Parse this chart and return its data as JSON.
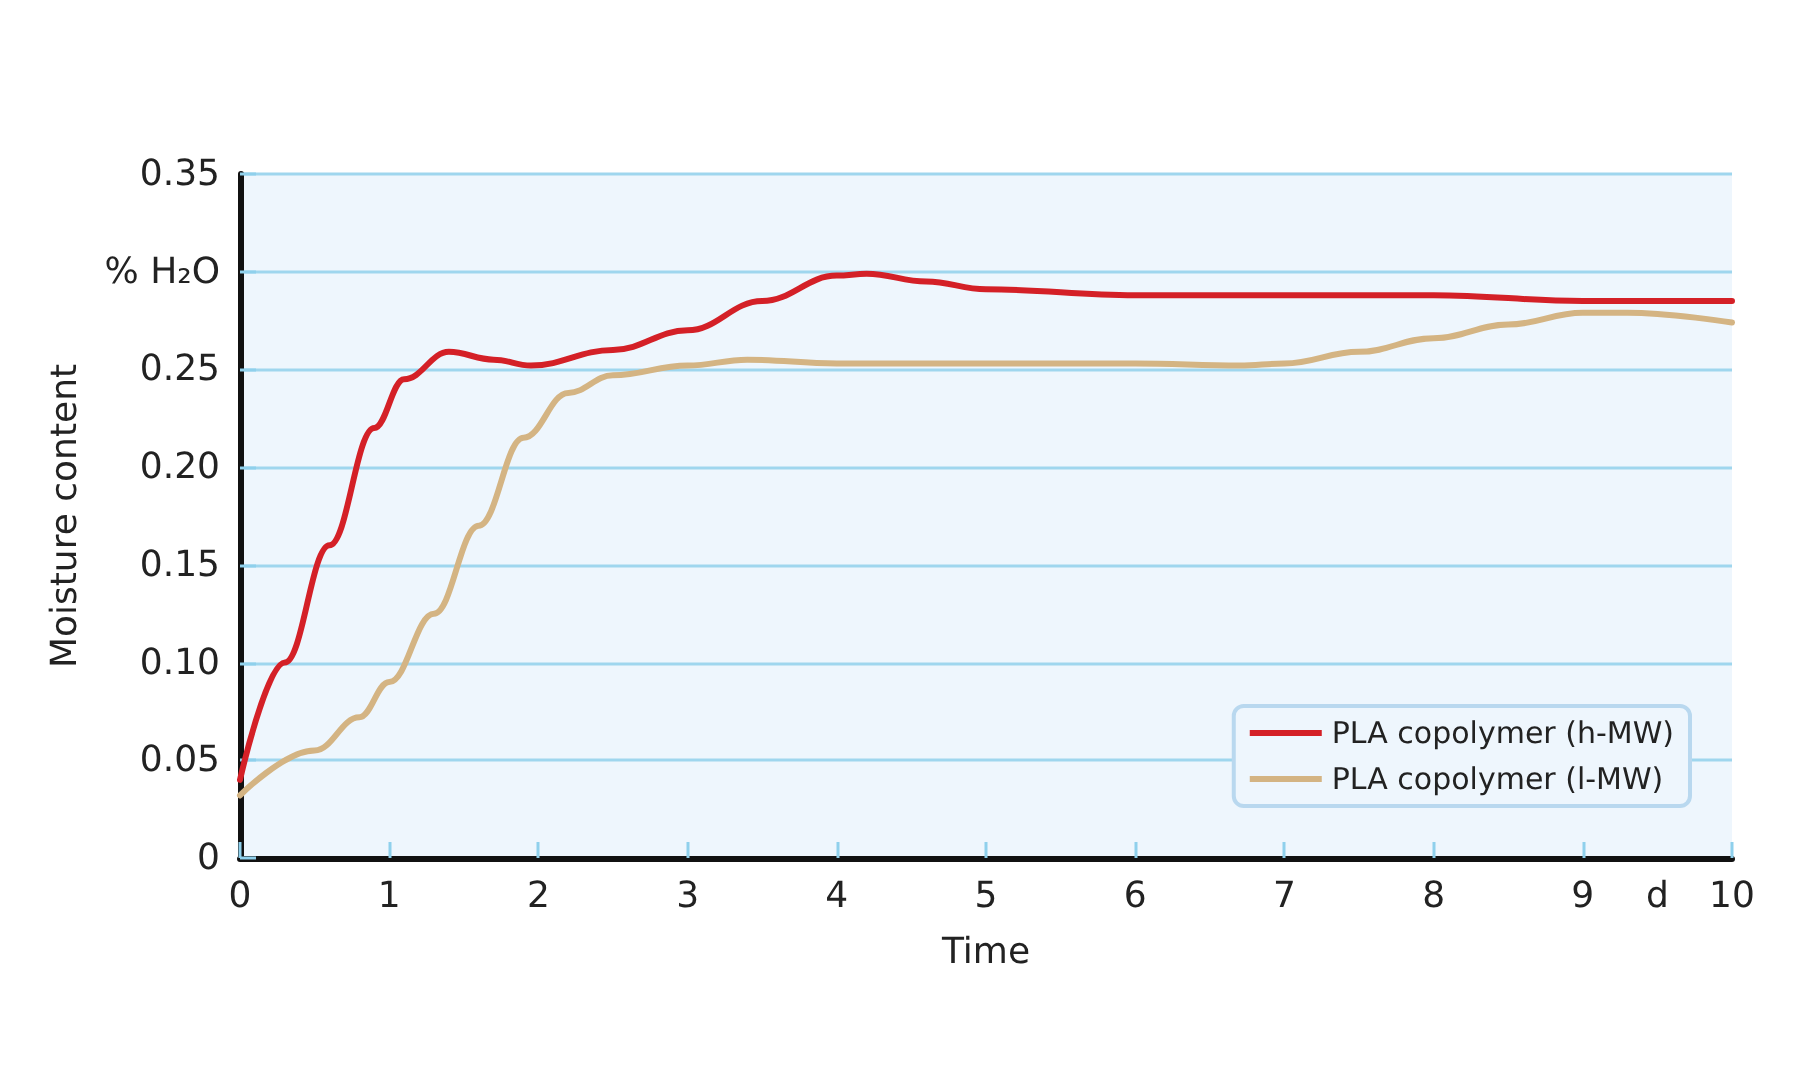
{
  "chart_data": {
    "type": "line",
    "xlabel": "Time",
    "ylabel": "Moisture content",
    "xlim": [
      0,
      10
    ],
    "ylim": [
      0,
      0.35
    ],
    "xticks": [
      0,
      1,
      2,
      3,
      4,
      5,
      6,
      7,
      8,
      9,
      {
        "value": 9.5,
        "label": "d"
      },
      10
    ],
    "yticks": [
      0,
      {
        "value": 0.05,
        "label": "0.05"
      },
      {
        "value": 0.1,
        "label": "0.10"
      },
      {
        "value": 0.15,
        "label": "0.15"
      },
      {
        "value": 0.2,
        "label": "0.20"
      },
      {
        "value": 0.25,
        "label": "0.25"
      },
      {
        "value": 0.3,
        "label": "% H₂O"
      },
      {
        "value": 0.35,
        "label": "0.35"
      }
    ],
    "grid": "y",
    "legend": "bottom right",
    "line_style": "solid",
    "marker": "none",
    "series": [
      {
        "name": "PLA copolymer (h-MW)",
        "color": "#d42027",
        "x": [
          0,
          0.3,
          0.6,
          0.9,
          1.1,
          1.4,
          1.7,
          1.95,
          2.5,
          3,
          3.5,
          4,
          4.2,
          4.6,
          5,
          6,
          7,
          8,
          9,
          10
        ],
        "values": [
          0.04,
          0.1,
          0.16,
          0.22,
          0.245,
          0.259,
          0.255,
          0.252,
          0.26,
          0.27,
          0.285,
          0.298,
          0.299,
          0.295,
          0.291,
          0.288,
          0.288,
          0.288,
          0.285,
          0.285
        ]
      },
      {
        "name": "PLA copolymer (l-MW)",
        "color": "#d4b483",
        "x": [
          0,
          0.5,
          0.8,
          1,
          1.3,
          1.6,
          1.9,
          2.2,
          2.5,
          3,
          3.4,
          4,
          5,
          6,
          6.7,
          7,
          7.5,
          8,
          8.5,
          9,
          9.3,
          10
        ],
        "values": [
          0.032,
          0.055,
          0.072,
          0.09,
          0.125,
          0.17,
          0.215,
          0.238,
          0.247,
          0.252,
          0.255,
          0.253,
          0.253,
          0.253,
          0.252,
          0.253,
          0.259,
          0.266,
          0.273,
          0.279,
          0.279,
          0.274
        ]
      }
    ]
  }
}
